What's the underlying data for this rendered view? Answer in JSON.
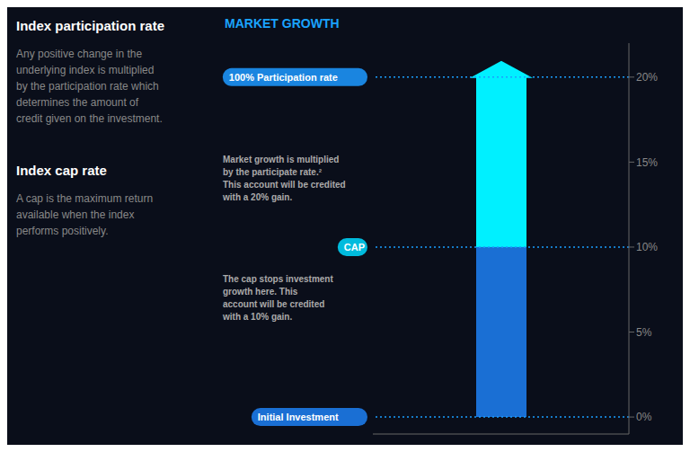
{
  "chart_data": {
    "type": "bar",
    "title": "MARKET GROWTH",
    "categories": [
      null
    ],
    "stacked": true,
    "grid": false,
    "tick_labels": "y",
    "series": [
      {
        "color": "#1a6fd4",
        "values": [
          10
        ]
      },
      {
        "color": "#00f0ff",
        "values": [
          10
        ]
      }
    ],
    "ylim": [
      -1,
      22
    ],
    "yticks": [
      {
        "value": 0,
        "label": "0%"
      },
      {
        "value": 5,
        "label": "5%"
      },
      {
        "value": 10,
        "label": "10%"
      },
      {
        "value": 15,
        "label": "15%"
      },
      {
        "value": 20,
        "label": "20%"
      }
    ],
    "annotations": [
      {
        "heading": "Index participation rate",
        "text": "Any positive change in the\nunderlying index is multiplied\nby the participation rate which\ndetermines the amount of\ncredit given on the investment."
      },
      {
        "heading": "Index cap rate",
        "text": "A cap is the maximum return\navailable when the index\nperforms positively."
      },
      {
        "text": "Market growth is multiplied\nby the participate rate.²\nThis account will be credited\nwith a 20% gain."
      },
      {
        "text": "The cap stops investment\ngrowth here. This\naccount will be credited\nwith a 10% gain."
      },
      {
        "text": "100% Participation rate",
        "y": 20,
        "color": "#1a85e0"
      },
      {
        "text": "CAP",
        "y": 10,
        "color": "#00bbdd"
      },
      {
        "text": "Initial Investment",
        "y": 0,
        "color": "#1a6fd4"
      }
    ]
  }
}
